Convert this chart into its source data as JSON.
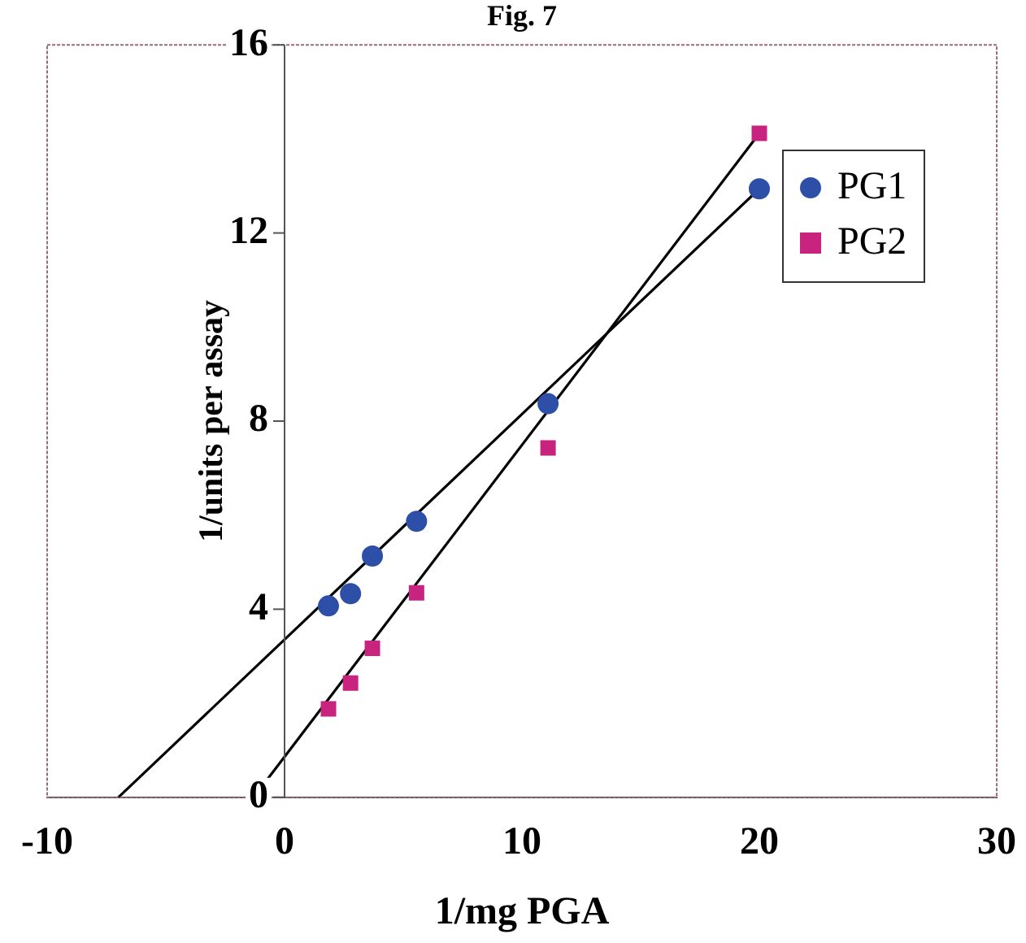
{
  "chart_data": {
    "type": "scatter",
    "title": "Fig. 7",
    "xlabel": "1/mg PGA",
    "ylabel": "1/units per assay",
    "xlim": [
      -10,
      30
    ],
    "xticks": [
      -10,
      0,
      10,
      20,
      30
    ],
    "ylim": [
      0,
      16
    ],
    "yticks": [
      0,
      4,
      8,
      12,
      16
    ],
    "grid": false,
    "legend": "top right",
    "series": [
      {
        "name": "PG1",
        "color": "#2e4fa8",
        "marker": "circle",
        "x": [
          1.85,
          2.78,
          3.7,
          5.56,
          11.1,
          20
        ],
        "values": [
          4.07,
          4.33,
          5.13,
          5.87,
          8.37,
          12.94
        ]
      },
      {
        "name": "PG2",
        "color": "#c8237e",
        "marker": "square",
        "x": [
          1.85,
          2.78,
          3.7,
          5.56,
          11.1,
          20
        ],
        "values": [
          1.88,
          2.43,
          3.17,
          4.35,
          7.43,
          14.12
        ]
      },
      {
        "type": "line",
        "color": "#000000",
        "marker": "none",
        "x": [
          -7,
          20
        ],
        "values": [
          0,
          12.94
        ]
      },
      {
        "type": "line",
        "color": "#000000",
        "marker": "none",
        "x": [
          -1.3,
          20
        ],
        "values": [
          0,
          14.12
        ]
      }
    ]
  }
}
